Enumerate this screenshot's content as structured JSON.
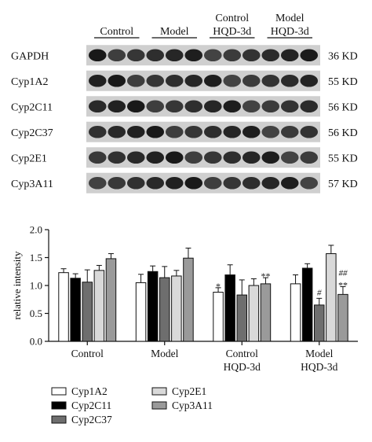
{
  "blot": {
    "groups": [
      {
        "lines": [
          "Control"
        ]
      },
      {
        "lines": [
          "Model"
        ]
      },
      {
        "lines": [
          "Control",
          "HQD-3d"
        ]
      },
      {
        "lines": [
          "Model",
          "HQD-3d"
        ]
      }
    ],
    "rows": [
      {
        "name": "GAPDH",
        "size": "36 KD"
      },
      {
        "name": "Cyp1A2",
        "size": "55 KD"
      },
      {
        "name": "Cyp2C11",
        "size": "56 KD"
      },
      {
        "name": "Cyp2C37",
        "size": "56 KD"
      },
      {
        "name": "Cyp2E1",
        "size": "55 KD"
      },
      {
        "name": "Cyp3A11",
        "size": "57 KD"
      }
    ]
  },
  "chart_data": {
    "type": "bar",
    "ylabel": "relative intensity",
    "ylim": [
      0,
      2.0
    ],
    "yticks": [
      "0.0",
      "0.5",
      "1.0",
      "1.5",
      "2.0"
    ],
    "categories": [
      {
        "lines": [
          "Control"
        ]
      },
      {
        "lines": [
          "Model"
        ]
      },
      {
        "lines": [
          "Control",
          "HQD-3d"
        ]
      },
      {
        "lines": [
          "Model",
          "HQD-3d"
        ]
      }
    ],
    "series": [
      {
        "name": "Cyp1A2",
        "color": "#ffffff",
        "values": [
          1.23,
          1.05,
          0.88,
          1.03
        ],
        "errors": [
          0.07,
          0.15,
          0.08,
          0.16
        ]
      },
      {
        "name": "Cyp2C11",
        "color": "#000000",
        "values": [
          1.13,
          1.25,
          1.19,
          1.31
        ],
        "errors": [
          0.08,
          0.1,
          0.18,
          0.08
        ]
      },
      {
        "name": "Cyp2C37",
        "color": "#6e6e6e",
        "values": [
          1.06,
          1.14,
          0.83,
          0.65
        ],
        "errors": [
          0.22,
          0.2,
          0.27,
          0.12
        ]
      },
      {
        "name": "Cyp2E1",
        "color": "#d9d9d9",
        "values": [
          1.27,
          1.17,
          1.0,
          1.57
        ],
        "errors": [
          0.09,
          0.1,
          0.12,
          0.15
        ]
      },
      {
        "name": "Cyp3A11",
        "color": "#9a9a9a",
        "values": [
          1.48,
          1.49,
          1.03,
          0.84
        ],
        "errors": [
          0.09,
          0.18,
          0.11,
          0.14
        ]
      }
    ],
    "annotations": [
      {
        "category": 2,
        "series": 0,
        "text": "*",
        "color": "#c0392b"
      },
      {
        "category": 2,
        "series": 4,
        "text": "**",
        "color": "#c0392b"
      },
      {
        "category": 3,
        "series": 2,
        "text": "#",
        "color": "#3b4fb8"
      },
      {
        "category": 3,
        "series": 4,
        "text": "##",
        "color": "#3b4fb8",
        "line": 0
      },
      {
        "category": 3,
        "series": 4,
        "text": "**",
        "color": "#c0392b",
        "line": 1
      }
    ],
    "legend": {
      "placement": "bottom-left"
    }
  }
}
